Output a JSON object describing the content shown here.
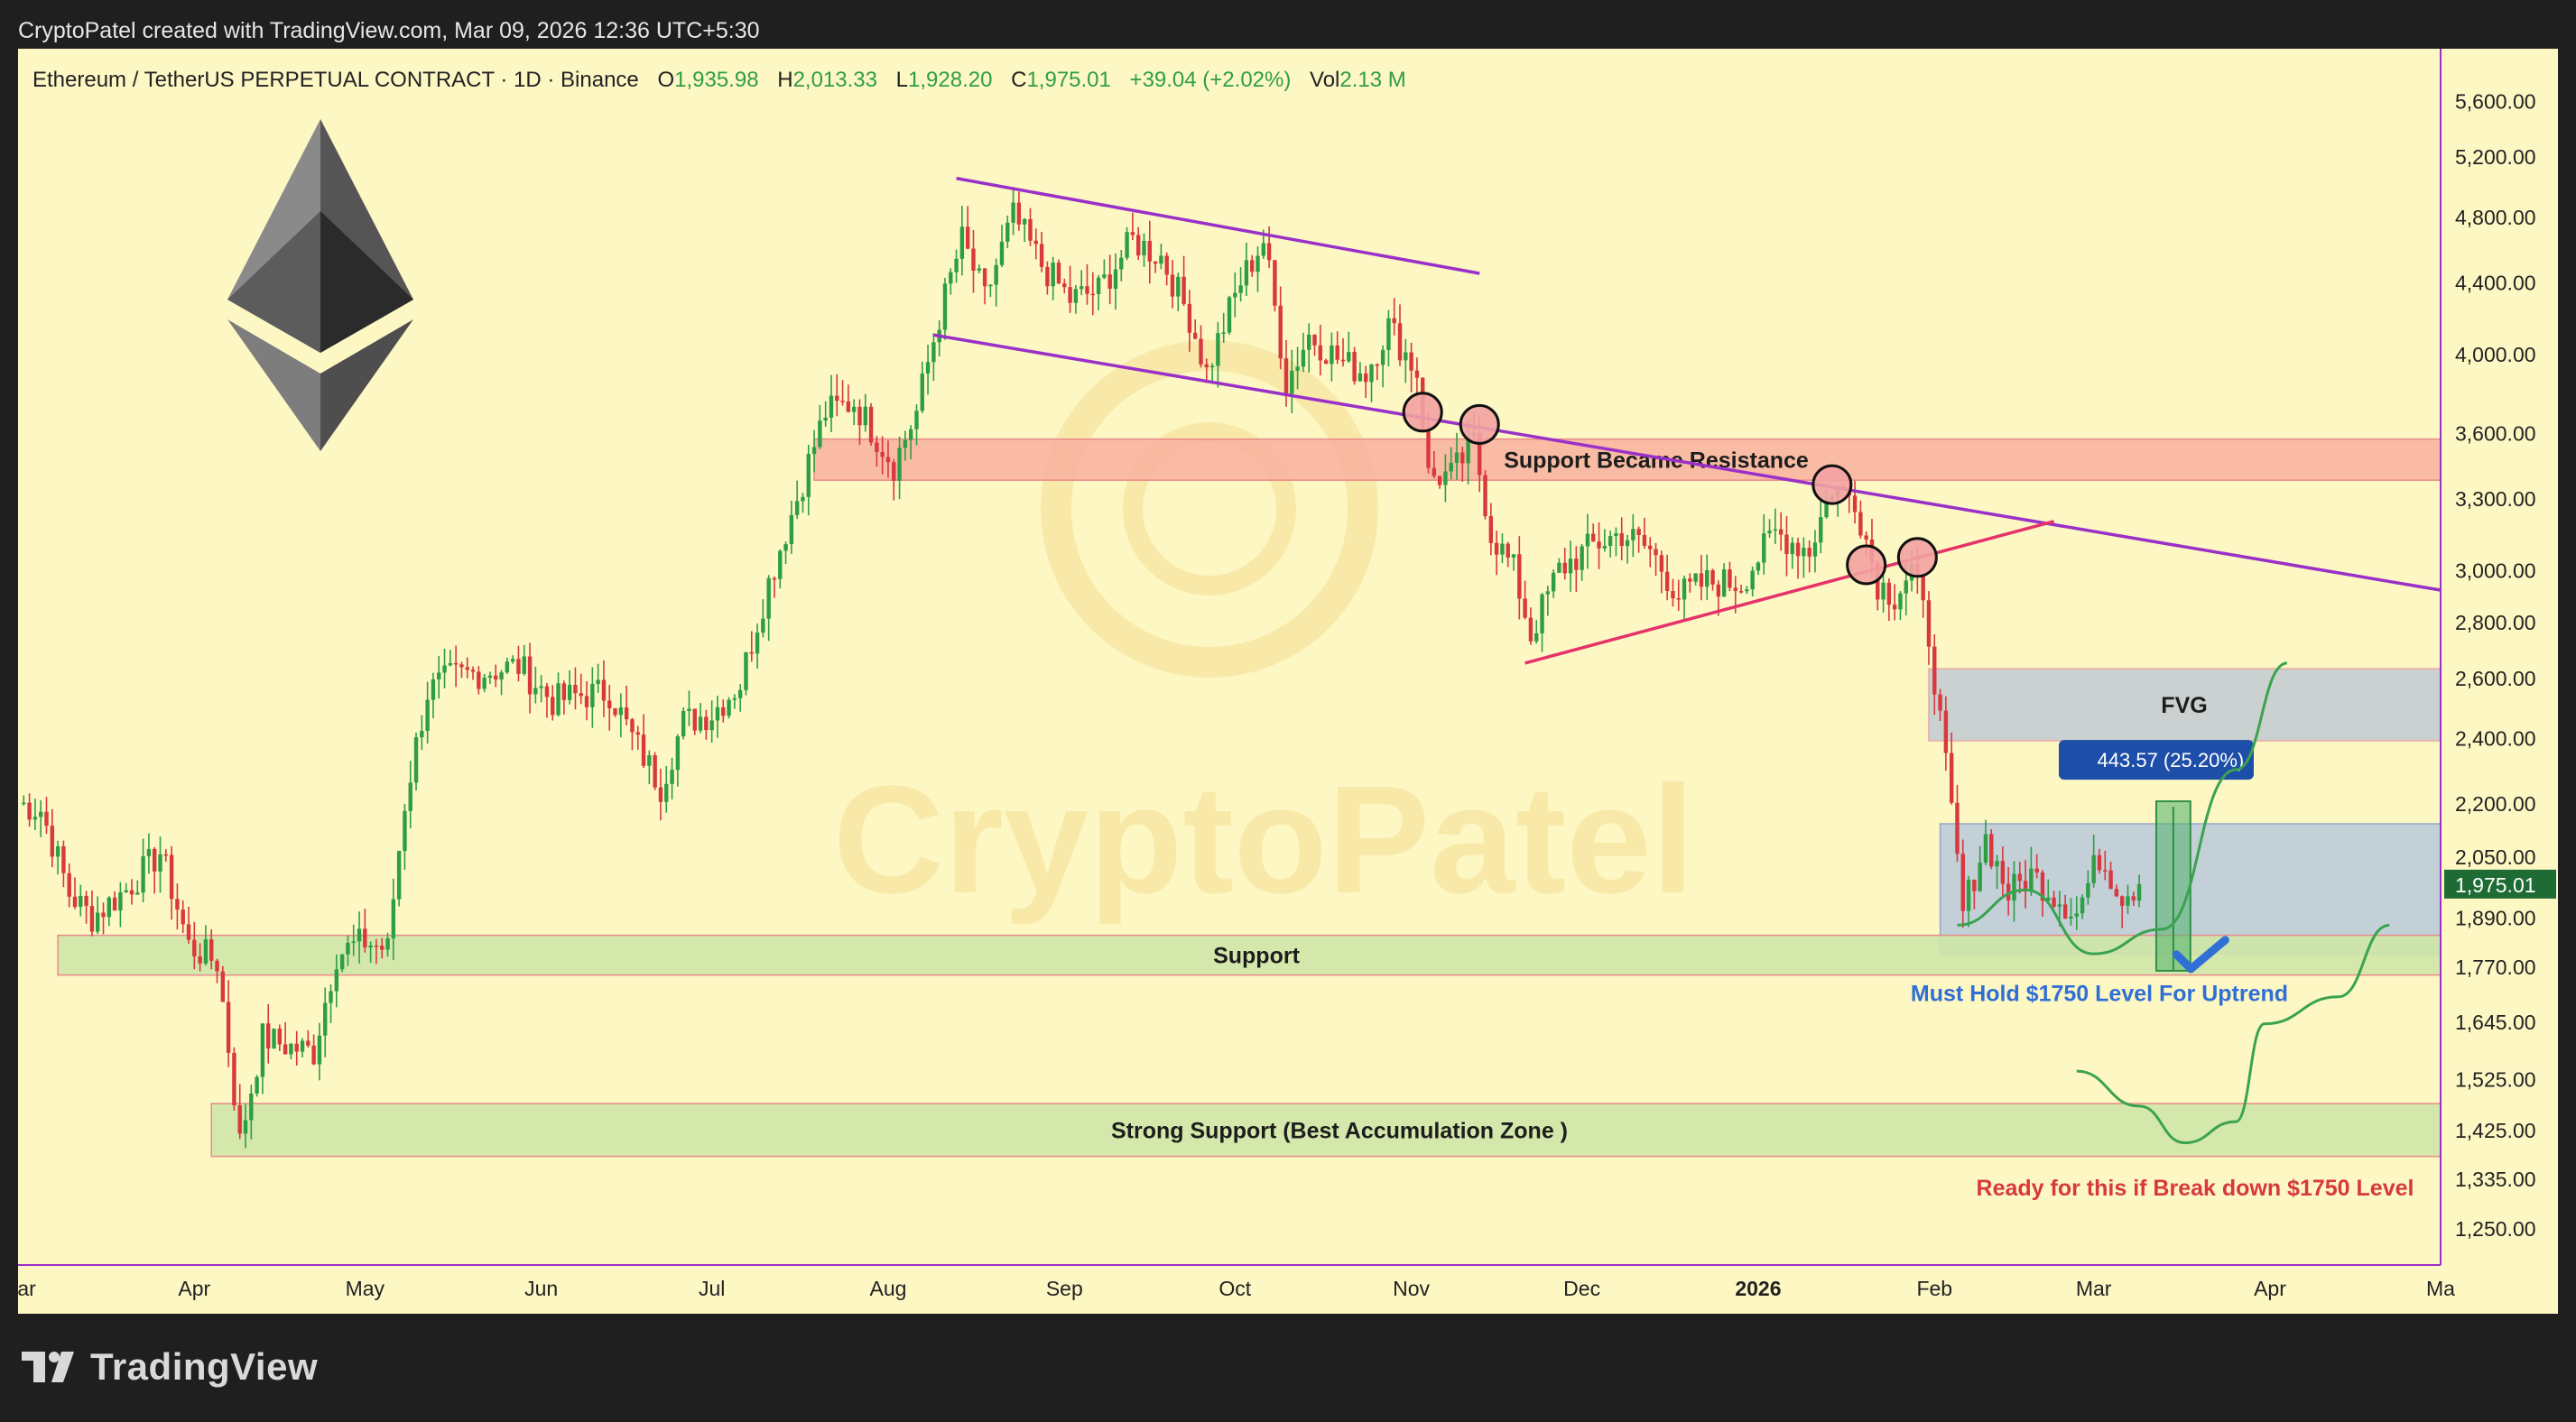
{
  "header": {
    "attribution": "CryptoPatel created with TradingView.com, Mar 09, 2026 12:36 UTC+5:30"
  },
  "info_bar": {
    "symbol": "Ethereum / TetherUS PERPETUAL CONTRACT · 1D · Binance",
    "o_label": "O",
    "o_value": "1,935.98",
    "h_label": "H",
    "h_value": "2,013.33",
    "l_label": "L",
    "l_value": "1,928.20",
    "c_label": "C",
    "c_value": "1,975.01",
    "change": "+39.04 (+2.02%)",
    "vol_label": "Vol",
    "vol_value": "2.13 M"
  },
  "watermark": "CryptoPatel",
  "footer": {
    "brand": "TradingView"
  },
  "colors": {
    "background": "#fdf7c4",
    "frame": "#1f1f1f",
    "trendline_purple": "#9b30c8",
    "trendline_pink": "#e5326a",
    "candle_up": "#2e9e45",
    "candle_down": "#d8383f",
    "resistance_zone": "#f8b4a0",
    "support_zone": "#cfe6a8",
    "fvg_zone": "#c5ccd2",
    "range_box": "#b8c9da",
    "projection_green": "#3aa34f",
    "must_hold_text": "#2f6fd6",
    "ready_text": "#d8383f",
    "last_price_tag": "#1f6b34",
    "measure_badge": "#1e4fa8"
  },
  "chart_data": {
    "type": "candlestick",
    "title": "Ethereum / TetherUS PERPETUAL CONTRACT · 1D · Binance",
    "timeframe": "1D",
    "x_axis": {
      "labels": [
        "Mar",
        "Apr",
        "May",
        "Jun",
        "Jul",
        "Aug",
        "Sep",
        "Oct",
        "Nov",
        "Dec",
        "2026",
        "Feb",
        "Mar",
        "Apr",
        "Ma"
      ],
      "label_dates": [
        "2025-03-01",
        "2025-04-01",
        "2025-05-01",
        "2025-06-01",
        "2025-07-01",
        "2025-08-01",
        "2025-09-01",
        "2025-10-01",
        "2025-11-01",
        "2025-12-01",
        "2026-01-01",
        "2026-02-01",
        "2026-03-01",
        "2026-04-01",
        "2026-05-01"
      ],
      "range": [
        "2025-03-01",
        "2026-05-01"
      ]
    },
    "y_axis": {
      "ticks": [
        5600,
        5200,
        4800,
        4400,
        4000,
        3600,
        3300,
        3000,
        2800,
        2600,
        2400,
        2200,
        2050,
        1890,
        1770,
        1645,
        1525,
        1425,
        1335,
        1250
      ],
      "tick_labels": [
        "5,600.00",
        "5,200.00",
        "4,800.00",
        "4,400.00",
        "4,000.00",
        "3,600.00",
        "3,300.00",
        "3,000.00",
        "2,800.00",
        "2,600.00",
        "2,400.00",
        "2,200.00",
        "2,050.00",
        "1,890.00",
        "1,770.00",
        "1,645.00",
        "1,525.00",
        "1,425.00",
        "1,335.00",
        "1,250.00"
      ],
      "scale": "log",
      "range": [
        1190,
        6000
      ]
    },
    "last_price": {
      "value": 1975.01,
      "label": "1,975.01"
    },
    "price_path": [
      [
        "2025-03-01",
        2200
      ],
      [
        "2025-03-05",
        2180
      ],
      [
        "2025-03-10",
        1950
      ],
      [
        "2025-03-14",
        1890
      ],
      [
        "2025-03-20",
        1960
      ],
      [
        "2025-03-26",
        2060
      ],
      [
        "2025-03-31",
        1820
      ],
      [
        "2025-04-05",
        1780
      ],
      [
        "2025-04-09",
        1400
      ],
      [
        "2025-04-13",
        1610
      ],
      [
        "2025-04-18",
        1590
      ],
      [
        "2025-04-22",
        1580
      ],
      [
        "2025-04-26",
        1800
      ],
      [
        "2025-05-01",
        1830
      ],
      [
        "2025-05-05",
        1810
      ],
      [
        "2025-05-08",
        2200
      ],
      [
        "2025-05-12",
        2550
      ],
      [
        "2025-05-16",
        2600
      ],
      [
        "2025-05-22",
        2620
      ],
      [
        "2025-05-28",
        2640
      ],
      [
        "2025-06-03",
        2520
      ],
      [
        "2025-06-08",
        2540
      ],
      [
        "2025-06-13",
        2550
      ],
      [
        "2025-06-17",
        2400
      ],
      [
        "2025-06-22",
        2250
      ],
      [
        "2025-06-26",
        2450
      ],
      [
        "2025-07-01",
        2480
      ],
      [
        "2025-07-06",
        2580
      ],
      [
        "2025-07-11",
        2950
      ],
      [
        "2025-07-16",
        3300
      ],
      [
        "2025-07-21",
        3700
      ],
      [
        "2025-07-26",
        3750
      ],
      [
        "2025-08-02",
        3450
      ],
      [
        "2025-08-06",
        3700
      ],
      [
        "2025-08-10",
        4200
      ],
      [
        "2025-08-14",
        4650
      ],
      [
        "2025-08-18",
        4300
      ],
      [
        "2025-08-23",
        4800
      ],
      [
        "2025-08-28",
        4500
      ],
      [
        "2025-09-02",
        4300
      ],
      [
        "2025-09-07",
        4350
      ],
      [
        "2025-09-13",
        4650
      ],
      [
        "2025-09-18",
        4550
      ],
      [
        "2025-09-23",
        4200
      ],
      [
        "2025-09-26",
        3900
      ],
      [
        "2025-10-02",
        4400
      ],
      [
        "2025-10-06",
        4650
      ],
      [
        "2025-10-10",
        3850
      ],
      [
        "2025-10-14",
        4100
      ],
      [
        "2025-10-20",
        3950
      ],
      [
        "2025-10-24",
        3900
      ],
      [
        "2025-10-28",
        4150
      ],
      [
        "2025-11-02",
        3900
      ],
      [
        "2025-11-04",
        3400
      ],
      [
        "2025-11-08",
        3400
      ],
      [
        "2025-11-12",
        3550
      ],
      [
        "2025-11-15",
        3150
      ],
      [
        "2025-11-19",
        3000
      ],
      [
        "2025-11-22",
        2750
      ],
      [
        "2025-11-27",
        3000
      ],
      [
        "2025-12-03",
        3100
      ],
      [
        "2025-12-08",
        3150
      ],
      [
        "2025-12-13",
        3080
      ],
      [
        "2025-12-18",
        2900
      ],
      [
        "2025-12-23",
        2950
      ],
      [
        "2025-12-29",
        2950
      ],
      [
        "2026-01-04",
        3150
      ],
      [
        "2026-01-10",
        3080
      ],
      [
        "2026-01-14",
        3350
      ],
      [
        "2026-01-18",
        3300
      ],
      [
        "2026-01-22",
        2950
      ],
      [
        "2026-01-25",
        2900
      ],
      [
        "2026-01-28",
        3000
      ],
      [
        "2026-01-31",
        2750
      ],
      [
        "2026-02-03",
        2300
      ],
      [
        "2026-02-06",
        1900
      ],
      [
        "2026-02-10",
        2100
      ],
      [
        "2026-02-14",
        1950
      ],
      [
        "2026-02-18",
        2000
      ],
      [
        "2026-02-22",
        1950
      ],
      [
        "2026-02-26",
        1900
      ],
      [
        "2026-03-02",
        2050
      ],
      [
        "2026-03-06",
        1950
      ],
      [
        "2026-03-09",
        1975.01
      ]
    ],
    "trendlines": [
      {
        "name": "upper-channel",
        "from": [
          "2025-08-13",
          5050
        ],
        "to": [
          "2025-11-13",
          4450
        ]
      },
      {
        "name": "lower-channel",
        "from": [
          "2025-08-09",
          4100
        ],
        "to": [
          "2026-05-01",
          2920
        ]
      },
      {
        "name": "rising-support",
        "from": [
          "2025-11-21",
          2650
        ],
        "to": [
          "2026-02-22",
          3200
        ]
      }
    ],
    "zones": [
      {
        "name": "resistance-zone",
        "label": "Support Became Resistance",
        "from_date": "2025-07-19",
        "to_date": "2026-05-01",
        "low": 3380,
        "high": 3570
      },
      {
        "name": "fvg-zone",
        "label": "FVG",
        "from_date": "2026-01-31",
        "to_date": "2026-05-01",
        "low": 2390,
        "high": 2630
      },
      {
        "name": "range-box",
        "label": "",
        "from_date": "2026-02-02",
        "to_date": "2026-05-01",
        "low": 1800,
        "high": 2140
      },
      {
        "name": "support-zone",
        "label": "Support",
        "from_date": "2025-03-08",
        "to_date": "2026-05-01",
        "low": 1750,
        "high": 1845
      },
      {
        "name": "strong-support-zone",
        "label": "Strong Support (Best Accumulation Zone )",
        "from_date": "2025-04-04",
        "to_date": "2026-05-01",
        "low": 1375,
        "high": 1475
      }
    ],
    "markers": [
      {
        "date": "2025-11-03",
        "price": 3700
      },
      {
        "date": "2025-11-13",
        "price": 3640
      },
      {
        "date": "2026-01-14",
        "price": 3360
      },
      {
        "date": "2026-01-20",
        "price": 3020
      },
      {
        "date": "2026-01-29",
        "price": 3050
      }
    ],
    "measure": {
      "label": "443.57 (25.20%)",
      "from_date": "2026-03-12",
      "to_date": "2026-03-18",
      "low": 1760,
      "high": 2205
    },
    "projection_up": [
      [
        "2026-02-05",
        1870
      ],
      [
        "2026-02-17",
        1960
      ],
      [
        "2026-03-01",
        1800
      ],
      [
        "2026-03-13",
        1860
      ],
      [
        "2026-03-26",
        2300
      ],
      [
        "2026-04-04",
        2650
      ]
    ],
    "projection_down": [
      [
        "2026-02-26",
        1540
      ],
      [
        "2026-03-09",
        1470
      ],
      [
        "2026-03-17",
        1400
      ],
      [
        "2026-03-26",
        1440
      ],
      [
        "2026-03-31",
        1640
      ],
      [
        "2026-04-13",
        1700
      ],
      [
        "2026-04-22",
        1870
      ]
    ],
    "checkmark": {
      "date": "2026-03-20",
      "price": 1790
    },
    "annotations": {
      "must_hold": "Must Hold $1750 Level For Uptrend",
      "ready": "Ready for this if Break down $1750 Level"
    }
  }
}
